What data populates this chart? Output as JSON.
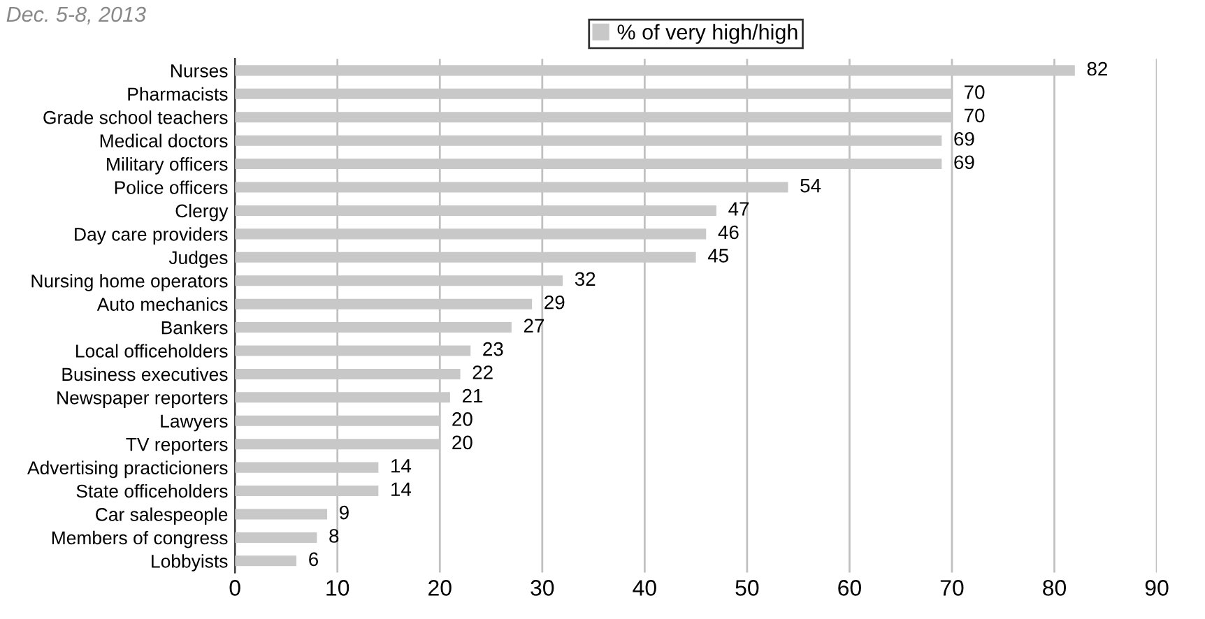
{
  "chart_data": {
    "type": "bar",
    "orientation": "horizontal",
    "subtitle": "Dec. 5-8, 2013",
    "categories": [
      "Nurses",
      "Pharmacists",
      "Grade school teachers",
      "Medical doctors",
      "Military officers",
      "Police officers",
      "Clergy",
      "Day care providers",
      "Judges",
      "Nursing home operators",
      "Auto mechanics",
      "Bankers",
      "Local officeholders",
      "Business executives",
      "Newspaper reporters",
      "Lawyers",
      "TV reporters",
      "Advertising practicioners",
      "State officeholders",
      "Car salespeople",
      "Members of congress",
      "Lobbyists"
    ],
    "series": [
      {
        "name": "% of very high/high",
        "color": "#c8c8c8",
        "values": [
          82,
          70,
          70,
          69,
          69,
          54,
          47,
          46,
          45,
          32,
          29,
          27,
          23,
          22,
          21,
          20,
          20,
          14,
          14,
          9,
          8,
          6
        ]
      }
    ],
    "xlim": [
      0,
      90
    ],
    "xticks": [
      0,
      10,
      20,
      30,
      40,
      50,
      60,
      70,
      80,
      90
    ],
    "grid": "x",
    "legend": "top",
    "data_labels": true
  }
}
